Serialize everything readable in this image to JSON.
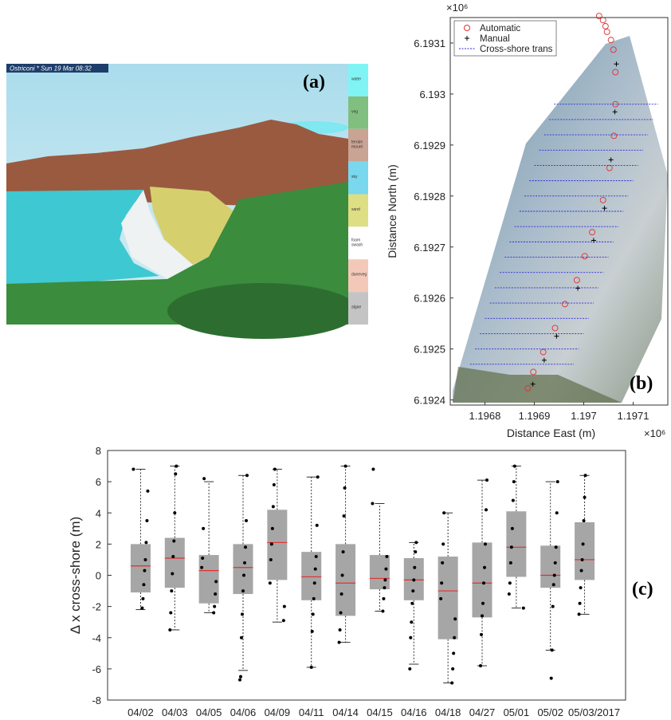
{
  "image_panel": {
    "label": "(a)",
    "header": "Ostriconi * Sun 19 Mar 08:32",
    "legend": [
      {
        "name": "water",
        "color": "#80f4f4"
      },
      {
        "name": "veg",
        "color": "#80bf80"
      },
      {
        "name": "terrain mount",
        "color": "#c9a394"
      },
      {
        "name": "sky",
        "color": "#79d7ee"
      },
      {
        "name": "sand",
        "color": "#dede85"
      },
      {
        "name": "foam swash",
        "color": "#ffffff"
      },
      {
        "name": "duneveg",
        "color": "#f4c8b8"
      },
      {
        "name": "algae",
        "color": "#c4c4c4"
      }
    ]
  },
  "chart_data": [
    {
      "type": "scatter",
      "label": "(b)",
      "xlabel": "Distance East (m)",
      "ylabel": "Distance North (m)",
      "x_scale_label": "×10⁶",
      "y_scale_label": "×10⁶",
      "xlim": [
        1.19673,
        1.19717
      ],
      "ylim": [
        6.19239,
        6.19315
      ],
      "xticks": [
        1.1968,
        1.1969,
        1.197,
        1.1971
      ],
      "yticks": [
        6.1924,
        6.1925,
        6.1926,
        6.1927,
        6.1928,
        6.1929,
        6.193,
        6.1931
      ],
      "legend": "top-left",
      "series": [
        {
          "name": "Automatic",
          "color": "#e03030",
          "marker": "circle",
          "x": [
            1.197031,
            1.197039,
            1.197044,
            1.197047,
            1.197055,
            1.19706,
            1.197064,
            1.197064,
            1.197061,
            1.197052,
            1.197039,
            1.197017,
            1.197002,
            1.196986,
            1.196962,
            1.196942,
            1.196918,
            1.196898,
            1.196887
          ],
          "y": [
            6.193153,
            6.193145,
            6.193133,
            6.193122,
            6.193106,
            6.193087,
            6.193043,
            6.19298,
            6.192918,
            6.192855,
            6.192792,
            6.192729,
            6.192682,
            6.192635,
            6.192588,
            6.192541,
            6.192494,
            6.192455,
            6.192423
          ]
        },
        {
          "name": "Manual",
          "color": "#000000",
          "marker": "plus",
          "x": [
            1.197066,
            1.197063,
            1.197055,
            1.197042,
            1.19702,
            1.196988,
            1.196945,
            1.19692,
            1.196897
          ],
          "y": [
            6.193059,
            6.192965,
            6.192871,
            6.192776,
            6.192713,
            6.192619,
            6.192525,
            6.192478,
            6.192431
          ]
        },
        {
          "name": "Cross-shore trans",
          "color": "#2a2ad8",
          "line": "dashed",
          "y": [
            6.19298,
            6.19295,
            6.19292,
            6.19289,
            6.19286,
            6.19283,
            6.1928,
            6.19277,
            6.19274,
            6.19271,
            6.19268,
            6.19265,
            6.19262,
            6.19259,
            6.19256,
            6.19253,
            6.1925,
            6.19247
          ],
          "x_start": [
            1.19694,
            1.19693,
            1.19692,
            1.19691,
            1.1969,
            1.19689,
            1.19688,
            1.19687,
            1.19686,
            1.19685,
            1.19684,
            1.19683,
            1.19682,
            1.19681,
            1.1968,
            1.19679,
            1.19678,
            1.19677
          ],
          "x_end": [
            1.19715,
            1.19714,
            1.19713,
            1.19712,
            1.19711,
            1.1971,
            1.19709,
            1.19708,
            1.19707,
            1.19706,
            1.19705,
            1.19704,
            1.19703,
            1.19702,
            1.19701,
            1.197,
            1.19699,
            1.19698
          ]
        }
      ]
    },
    {
      "type": "box",
      "label": "(c)",
      "ylabel": "Δ x cross-shore (m)",
      "categories": [
        "04/02",
        "04/03",
        "04/05",
        "04/06",
        "04/09",
        "04/11",
        "04/14",
        "04/15",
        "04/16",
        "04/18",
        "04/27",
        "05/01",
        "05/02",
        "05/03/2017"
      ],
      "ylim": [
        -8,
        8
      ],
      "yticks": [
        -8,
        -6,
        -4,
        -2,
        0,
        2,
        4,
        6,
        8
      ],
      "box_color": "#a6a6a6",
      "median_color": "#e03030",
      "point_color": "#000000",
      "median": [
        0.6,
        1.1,
        0.3,
        0.5,
        2.1,
        -0.1,
        -0.5,
        -0.2,
        -0.3,
        -1.0,
        -0.5,
        1.8,
        0.0,
        1.0
      ],
      "q1": [
        -1.1,
        -0.8,
        -1.8,
        -1.2,
        -0.3,
        -1.6,
        -2.6,
        -0.9,
        -1.6,
        -4.1,
        -2.7,
        -0.1,
        -0.8,
        -0.3
      ],
      "q3": [
        2.0,
        2.4,
        1.3,
        2.0,
        4.2,
        1.5,
        2.0,
        1.3,
        1.1,
        1.2,
        2.1,
        4.1,
        1.9,
        3.4
      ],
      "whisker_low": [
        -2.2,
        -3.5,
        -2.4,
        -6.1,
        -3.0,
        -5.9,
        -4.3,
        -2.3,
        -5.7,
        -6.9,
        -5.8,
        -2.1,
        -4.8,
        -2.5
      ],
      "whisker_high": [
        6.8,
        7.0,
        6.0,
        6.4,
        6.8,
        6.3,
        7.0,
        4.6,
        2.1,
        4.0,
        6.1,
        7.0,
        6.0,
        6.4
      ],
      "points": [
        [
          6.8,
          5.4,
          3.5,
          2.1,
          1.0,
          0.3,
          -0.6,
          -1.5,
          -2.1
        ],
        [
          7.0,
          6.5,
          4.0,
          2.2,
          1.2,
          0.1,
          -1.0,
          -2.4,
          -3.5
        ],
        [
          6.2,
          3.0,
          1.1,
          0.5,
          -0.4,
          -1.2,
          -2.0,
          -2.4
        ],
        [
          6.4,
          3.5,
          1.8,
          0.8,
          0.0,
          -1.0,
          -2.5,
          -4.0,
          -6.5,
          -6.7
        ],
        [
          6.8,
          5.8,
          4.4,
          3.0,
          2.0,
          1.0,
          -0.5,
          -2.0,
          -2.9
        ],
        [
          6.3,
          3.2,
          1.2,
          0.4,
          -0.5,
          -1.5,
          -2.5,
          -3.6,
          -5.9
        ],
        [
          7.0,
          5.6,
          3.8,
          1.5,
          0.0,
          -1.2,
          -2.4,
          -3.5,
          -4.3
        ],
        [
          6.8,
          4.6,
          1.2,
          0.4,
          -0.3,
          -0.8,
          -1.5,
          -2.3
        ],
        [
          2.1,
          1.5,
          0.5,
          -0.3,
          -1.0,
          -1.8,
          -3.0,
          -4.0,
          -6.0
        ],
        [
          4.0,
          2.0,
          0.8,
          -0.5,
          -1.5,
          -2.8,
          -4.0,
          -5.0,
          -6.0,
          -6.9
        ],
        [
          6.1,
          4.2,
          2.0,
          0.5,
          -0.5,
          -1.8,
          -2.6,
          -3.8,
          -5.8
        ],
        [
          7.0,
          6.0,
          4.8,
          3.0,
          1.8,
          0.8,
          -0.5,
          -1.2,
          -2.1
        ],
        [
          6.0,
          4.0,
          1.8,
          0.8,
          0.0,
          -0.6,
          -2.0,
          -4.8,
          -6.6
        ],
        [
          6.4,
          5.0,
          3.5,
          2.0,
          1.0,
          0.3,
          -0.8,
          -1.8,
          -2.5
        ]
      ]
    }
  ]
}
